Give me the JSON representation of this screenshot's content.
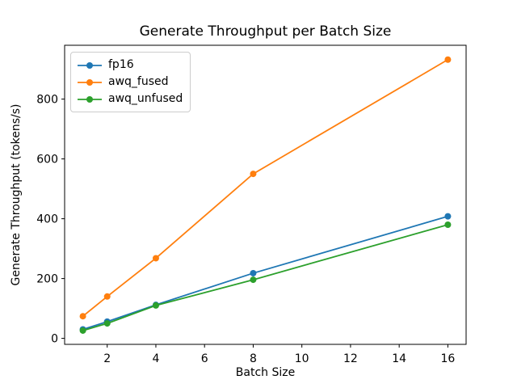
{
  "figure": {
    "title": "Generate Throughput per Batch Size",
    "xlabel": "Batch Size",
    "ylabel": "Generate Throughput (tokens/s)"
  },
  "chart_data": {
    "type": "line",
    "title": "Generate Throughput per Batch Size",
    "xlabel": "Batch Size",
    "ylabel": "Generate Throughput (tokens/s)",
    "x": [
      1,
      2,
      4,
      8,
      16
    ],
    "series": [
      {
        "name": "fp16",
        "color": "#1f77b4",
        "values": [
          30,
          56,
          112,
          218,
          408
        ]
      },
      {
        "name": "awq_fused",
        "color": "#ff7f0e",
        "values": [
          74,
          140,
          268,
          550,
          932
        ]
      },
      {
        "name": "awq_unfused",
        "color": "#2ca02c",
        "values": [
          26,
          50,
          110,
          196,
          380
        ]
      }
    ],
    "xlim": [
      0.25,
      16.75
    ],
    "ylim": [
      -20,
      980
    ],
    "xticks": [
      2,
      4,
      6,
      8,
      10,
      12,
      14,
      16
    ],
    "yticks": [
      0,
      200,
      400,
      600,
      800
    ],
    "marker": "o",
    "grid": false,
    "legend_position": "upper left",
    "spine_color": "#000000",
    "background": "#ffffff"
  }
}
